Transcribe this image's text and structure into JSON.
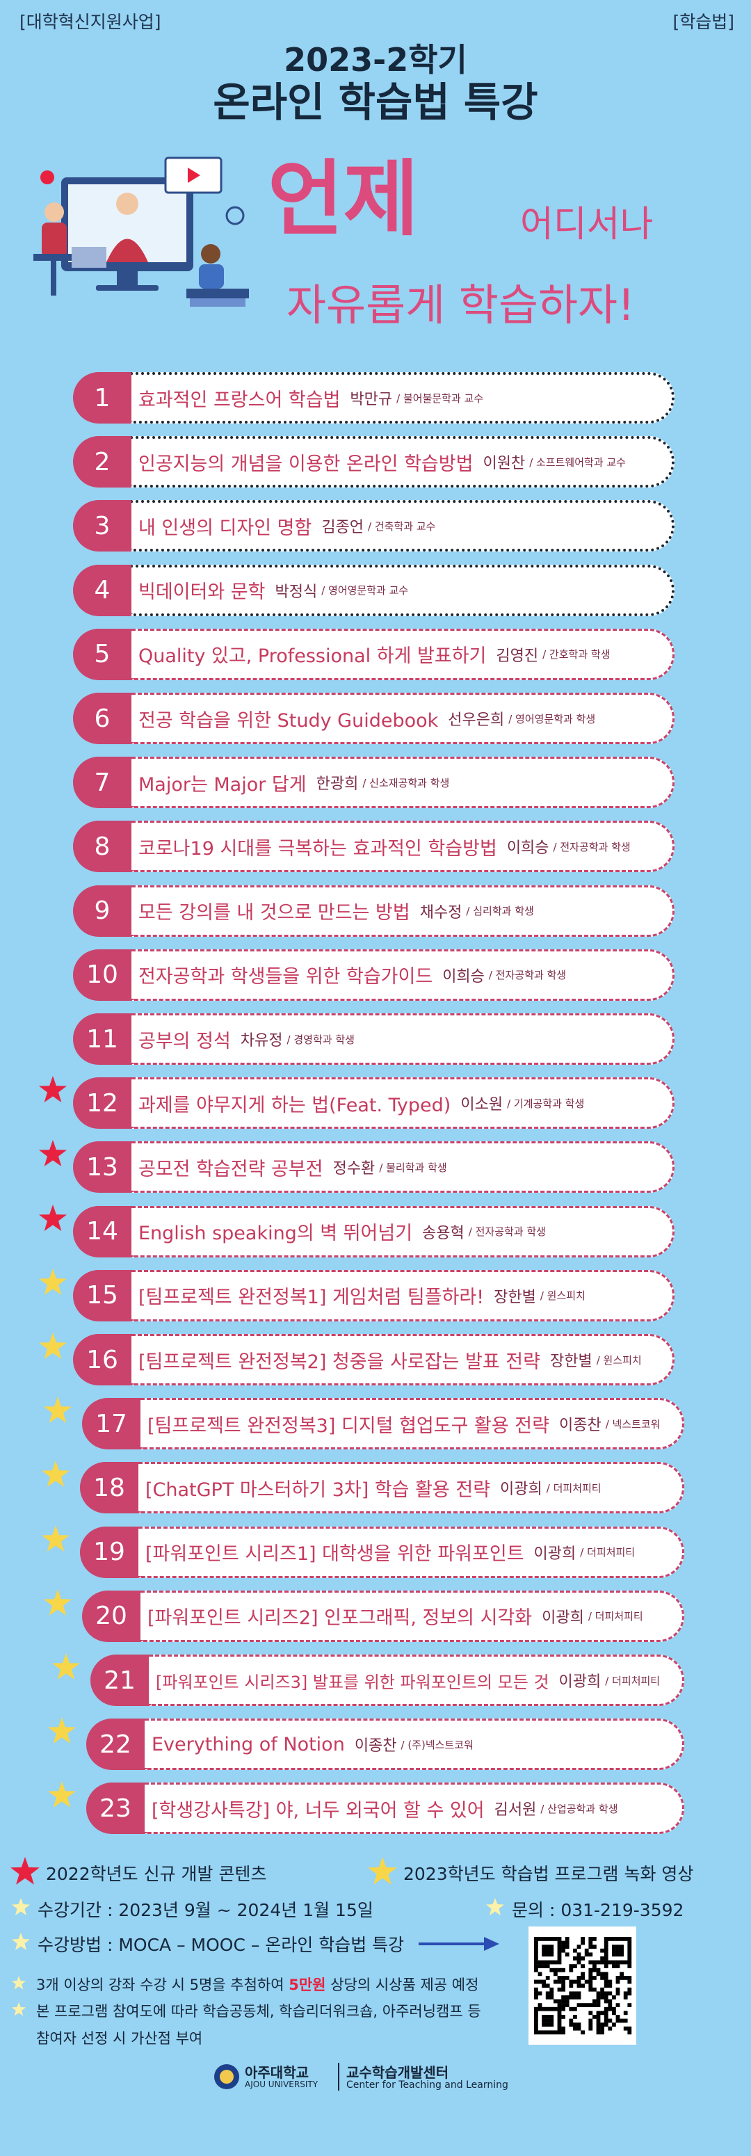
{
  "header": {
    "tag_left": "[대학혁신지원사업]",
    "tag_right": "[학습법]",
    "term": "2023-2학기",
    "title": "온라인 학습법 특강"
  },
  "slogan": {
    "main": "언제",
    "sub": "어디서나",
    "line": "자유롭게 학습하자!"
  },
  "lectures": [
    {
      "number": "1",
      "title": "효과적인 프랑스어 학습법",
      "speaker": "박만규",
      "affiliation": "/ 불어불문학과 교수",
      "border": "dotted"
    },
    {
      "number": "2",
      "title": "인공지능의 개념을 이용한 온라인 학습방법",
      "speaker": "이원찬",
      "affiliation": "/ 소프트웨어학과 교수",
      "border": "dotted"
    },
    {
      "number": "3",
      "title": "내 인생의 디자인 명함",
      "speaker": "김종언",
      "affiliation": "/ 건축학과 교수",
      "border": "dotted"
    },
    {
      "number": "4",
      "title": "빅데이터와 문학",
      "speaker": "박정식",
      "affiliation": "/ 영어영문학과 교수",
      "border": "dotted"
    },
    {
      "number": "5",
      "title": "Quality 있고, Professional 하게 발표하기",
      "speaker": "김영진",
      "affiliation": "/ 간호학과 학생",
      "border": "dashed"
    },
    {
      "number": "6",
      "title": "전공 학습을 위한 Study Guidebook",
      "speaker": "선우은희",
      "affiliation": "/ 영어영문학과 학생",
      "border": "dashed"
    },
    {
      "number": "7",
      "title": "Major는 Major 답게",
      "speaker": "한광희",
      "affiliation": "/ 신소재공학과 학생",
      "border": "dashed"
    },
    {
      "number": "8",
      "title": "코로나19 시대를 극복하는 효과적인 학습방법",
      "speaker": "이희승",
      "affiliation": "/ 전자공학과 학생",
      "border": "dashed"
    },
    {
      "number": "9",
      "title": "모든 강의를 내 것으로 만드는 방법",
      "speaker": "채수정",
      "affiliation": "/ 심리학과 학생",
      "border": "dashed"
    },
    {
      "number": "10",
      "title": "전자공학과 학생들을 위한 학습가이드",
      "speaker": "이희승",
      "affiliation": "/ 전자공학과 학생",
      "border": "dashed"
    },
    {
      "number": "11",
      "title": "공부의 정석",
      "speaker": "차유정",
      "affiliation": "/ 경영학과 학생",
      "border": "dashed"
    },
    {
      "number": "12",
      "title": "과제를 야무지게 하는 법(Feat. Typed)",
      "speaker": "이소원",
      "affiliation": "/ 기계공학과 학생",
      "border": "dashed",
      "star": "#e8213f"
    },
    {
      "number": "13",
      "title": "공모전 학습전략 공부전",
      "speaker": "정수환",
      "affiliation": "/ 물리학과 학생",
      "border": "dashed",
      "star": "#e8213f"
    },
    {
      "number": "14",
      "title": "English speaking의 벽 뛰어넘기",
      "speaker": "송용혁",
      "affiliation": "/ 전자공학과 학생",
      "border": "dashed",
      "star": "#e8213f"
    },
    {
      "number": "15",
      "title": "[팀프로젝트 완전정복1] 게임처럼 팀플하라!",
      "speaker": "장한별",
      "affiliation": "/ 윈스피치",
      "border": "dashed",
      "star": "#f7d64a"
    },
    {
      "number": "16",
      "title": "[팀프로젝트 완전정복2] 청중을 사로잡는 발표 전략",
      "speaker": "장한별",
      "affiliation": "/ 윈스피치",
      "border": "dashed",
      "star": "#f7d64a"
    },
    {
      "number": "17",
      "title": "[팀프로젝트 완전정복3] 디지털 협업도구 활용 전략",
      "speaker": "이종찬",
      "affiliation": "/ 넥스트코워",
      "border": "dashed",
      "star": "#f7d64a"
    },
    {
      "number": "18",
      "title": "[ChatGPT 마스터하기 3차] 학습 활용 전략",
      "speaker": "이광희",
      "affiliation": "/ 더피처피티",
      "border": "dashed",
      "star": "#f7d64a"
    },
    {
      "number": "19",
      "title": "[파워포인트 시리즈1] 대학생을 위한 파워포인트",
      "speaker": "이광희",
      "affiliation": "/ 더피처피티",
      "border": "dashed",
      "star": "#f7d64a"
    },
    {
      "number": "20",
      "title": "[파워포인트 시리즈2] 인포그래픽, 정보의 시각화",
      "speaker": "이광희",
      "affiliation": "/ 더피처피티",
      "border": "dashed",
      "star": "#f7d64a"
    },
    {
      "number": "21",
      "title": "[파워포인트 시리즈3] 발표를 위한 파워포인트의 모든 것",
      "speaker": "이광희",
      "affiliation": "/ 더피처피티",
      "border": "dashed",
      "star": "#f7d64a"
    },
    {
      "number": "22",
      "title": "Everything of Notion",
      "speaker": "이종찬",
      "affiliation": "/ (주)넥스트코워",
      "border": "dashed",
      "star": "#f7d64a"
    },
    {
      "number": "23",
      "title": "[학생강사특강] 야, 너두 외국어 할 수 있어",
      "speaker": "김서원",
      "affiliation": "/ 산업공학과 학생",
      "border": "dashed",
      "star": "#f7d64a"
    }
  ],
  "legend": [
    {
      "star": "#e8213f",
      "label": "2022학년도  신규 개발 콘텐츠"
    },
    {
      "star": "#f7d64a",
      "label": "2023학년도  학습법 프로그램 녹화 영상"
    }
  ],
  "info": {
    "period": "수강기간 : 2023년 9월  ~ 2024년 1월 15일",
    "contact": "문의 : 031-219-3592",
    "method": "수강방법 : MOCA – MOOC – 온라인 학습법 특강"
  },
  "notes": [
    {
      "before": "3개 이상의 강좌 수강 시 5명을 추첨하여 ",
      "highlight": "5만원",
      "after": " 상당의 시상품 제공 예정"
    },
    {
      "text": "본 프로그램 참여도에 따라 학습공동체, 학습리더워크숍, 아주러닝캠프 등"
    },
    {
      "text": "참여자 선정 시 가산점 부여"
    }
  ],
  "footer": {
    "university": "아주대학교",
    "university_en": "AJOU UNIVERSITY",
    "center": "교수학습개발센터",
    "center_en": "Center for Teaching and Learning"
  }
}
